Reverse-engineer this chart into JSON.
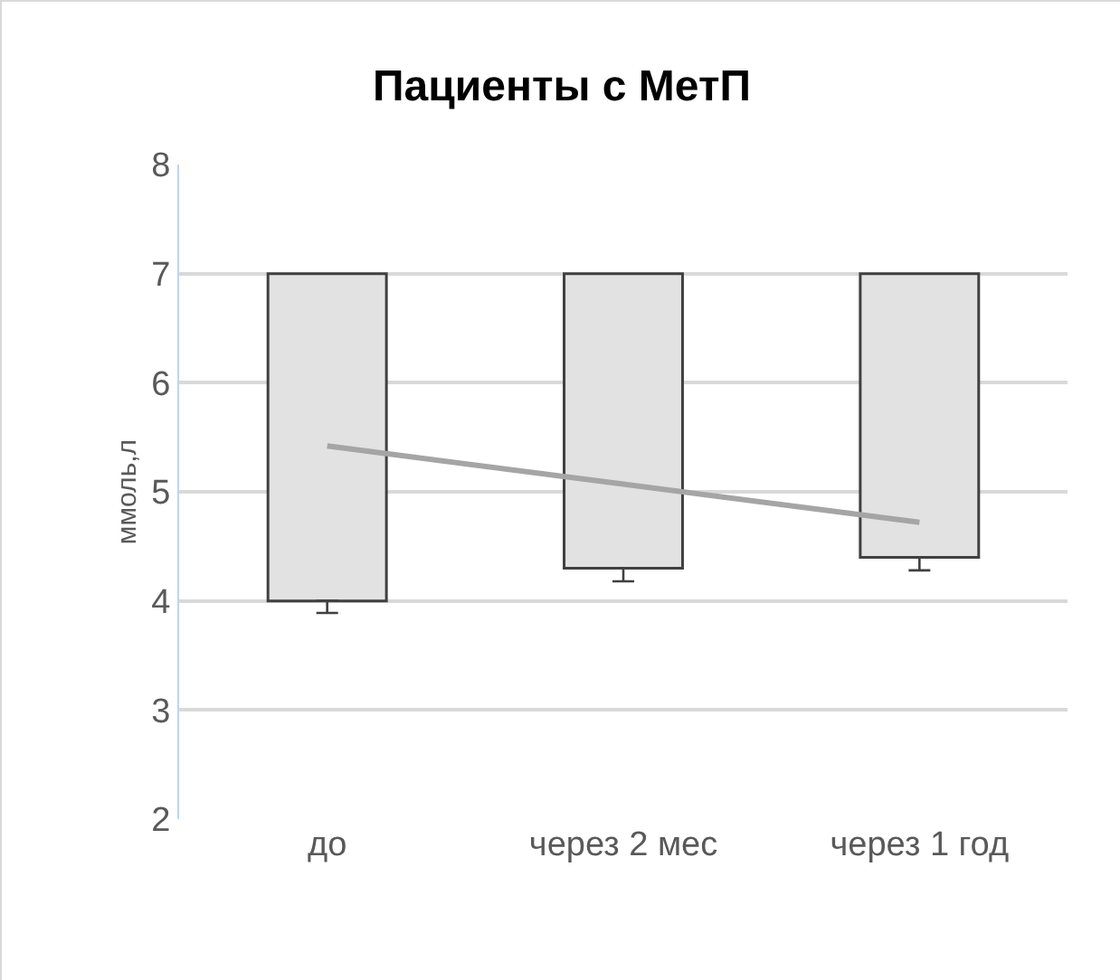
{
  "chart_data": {
    "type": "bar",
    "title": "Пациенты с МетП",
    "ylabel": "ммоль,л",
    "categories": [
      "до",
      "через 2 мес",
      "через 1 год"
    ],
    "series": [
      {
        "color": "#e2e2e2",
        "values": [
          -3,
          -2.7,
          -2.6
        ],
        "base": [
          7,
          7,
          7
        ],
        "errors": [
          [
            3.89,
            4
          ],
          [
            4.18,
            4.3
          ],
          [
            4.28,
            4.4
          ]
        ]
      },
      {
        "type": "line",
        "color": "#a5a5a5",
        "values": [
          5.42,
          5.07,
          4.72
        ],
        "marker": "none"
      }
    ],
    "ylim": [
      2,
      8
    ],
    "yticks": [
      2,
      3,
      4,
      5,
      6,
      7,
      8
    ],
    "grid": "y"
  }
}
